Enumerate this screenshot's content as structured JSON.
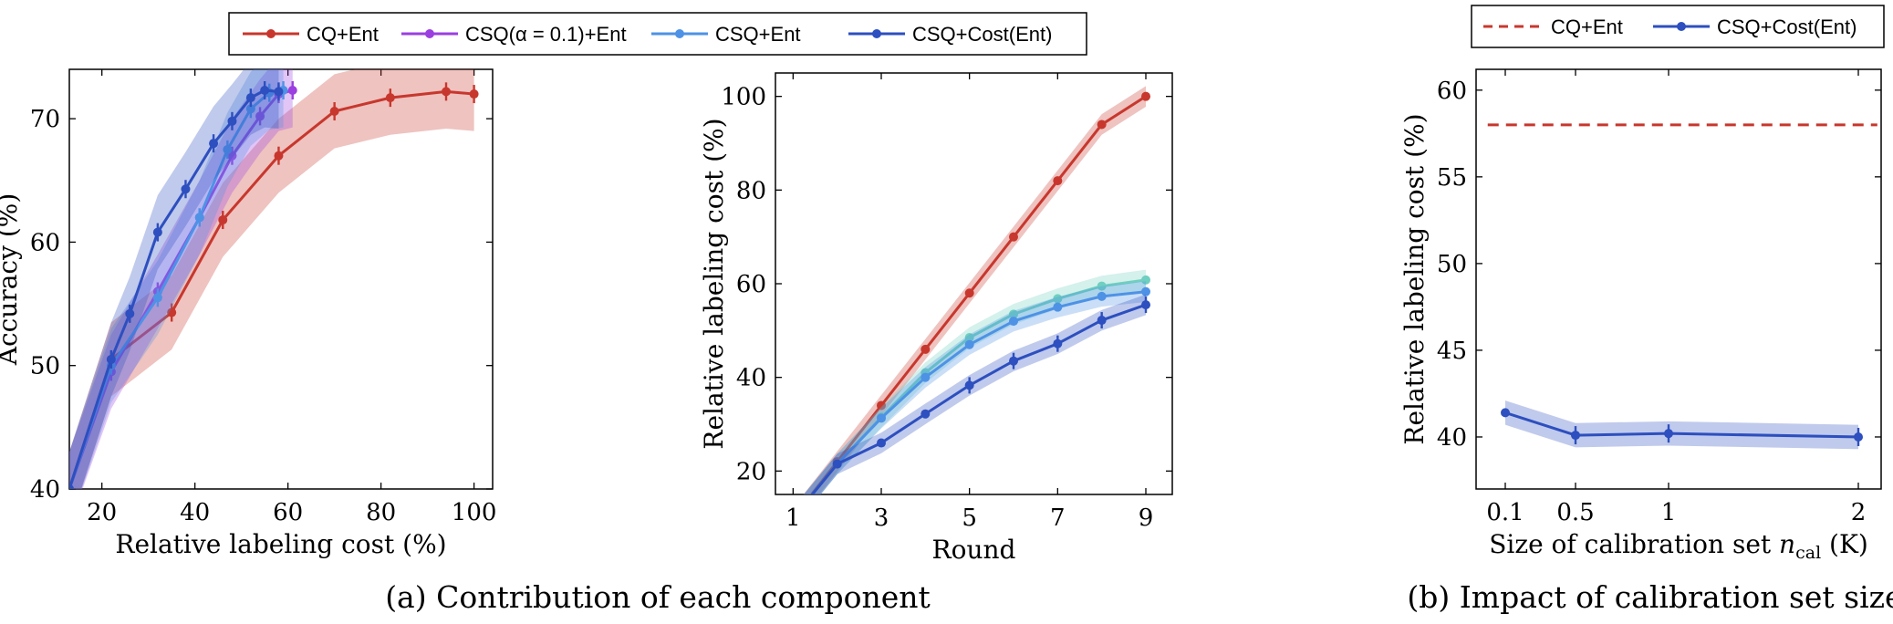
{
  "legend_a": [
    {
      "label": "CQ+Ent",
      "color": "#c8372d"
    },
    {
      "label": "CSQ(α = 0.1)+Ent",
      "color": "#9b3fe0"
    },
    {
      "label": "CSQ+Ent",
      "color": "#4e92e6"
    },
    {
      "label": "CSQ+Cost(Ent)",
      "color": "#2d4fbf"
    }
  ],
  "legend_b": [
    {
      "label": "CQ+Ent",
      "color": "#c8372d"
    },
    {
      "label": "CSQ+Cost(Ent)",
      "color": "#2d4fbf"
    }
  ],
  "captions": {
    "a": "(a) Contribution of each component",
    "b": "(b) Impact of calibration set size"
  },
  "chart_data": [
    {
      "type": "line",
      "xlabel": "Relative labeling cost (%)",
      "ylabel": "Accuracy (%)",
      "xlim": [
        13,
        104
      ],
      "ylim": [
        40,
        74
      ],
      "xticks": [
        20,
        40,
        60,
        80,
        100
      ],
      "yticks": [
        40,
        50,
        60,
        70
      ],
      "series": [
        {
          "name": "CQ+Ent",
          "color": "#c8372d",
          "x": [
            13,
            22,
            35,
            46,
            58,
            70,
            82,
            94,
            100
          ],
          "y": [
            40,
            50.5,
            54.3,
            61.8,
            67,
            70.6,
            71.7,
            72.2,
            72
          ]
        },
        {
          "name": "CSQ(α = 0.1)+Ent",
          "color": "#9b3fe0",
          "x": [
            13,
            22,
            32,
            41,
            48,
            54,
            58,
            61
          ],
          "y": [
            40,
            49.5,
            56,
            62,
            67,
            70.2,
            72,
            72.3
          ]
        },
        {
          "name": "CSQ+Ent",
          "color": "#4e92e6",
          "x": [
            13,
            22,
            32,
            41,
            47,
            52,
            56,
            59
          ],
          "y": [
            40,
            50,
            55.5,
            62,
            67.5,
            70.8,
            72.1,
            72.3
          ]
        },
        {
          "name": "CSQ+Cost(Ent)",
          "color": "#2d4fbf",
          "x": [
            13,
            22,
            26,
            32,
            38,
            44,
            48,
            52,
            55,
            58
          ],
          "y": [
            40,
            50.5,
            54.2,
            60.8,
            64.3,
            68,
            69.8,
            71.7,
            72.3,
            72.2
          ]
        }
      ]
    },
    {
      "type": "line",
      "xlabel": "Round",
      "ylabel": "Relative labeling cost (%)",
      "xlim": [
        0.6,
        9.6
      ],
      "ylim": [
        15,
        105
      ],
      "xticks": [
        1,
        3,
        5,
        7,
        9
      ],
      "yticks": [
        20,
        40,
        60,
        80,
        100
      ],
      "series": [
        {
          "color": "#c8372d",
          "x": [
            1,
            2,
            3,
            4,
            5,
            6,
            7,
            8,
            9
          ],
          "y": [
            10,
            22,
            34,
            46,
            58,
            70,
            82,
            94,
            100
          ]
        },
        {
          "color": "#6fcfc0",
          "x": [
            1,
            2,
            3,
            4,
            5,
            6,
            7,
            8,
            9
          ],
          "y": [
            10,
            21.5,
            31.5,
            41,
            48.5,
            53.5,
            56.8,
            59.5,
            60.8
          ]
        },
        {
          "color": "#4e92e6",
          "x": [
            1,
            2,
            3,
            4,
            5,
            6,
            7,
            8,
            9
          ],
          "y": [
            10,
            21.5,
            31.3,
            40,
            47,
            52,
            55,
            57.3,
            58.3
          ]
        },
        {
          "color": "#2d4fbf",
          "x": [
            1,
            2,
            3,
            4,
            5,
            6,
            7,
            8,
            9
          ],
          "y": [
            10,
            21.5,
            26,
            32.2,
            38.3,
            43.5,
            47.2,
            52.2,
            55.5
          ]
        }
      ]
    },
    {
      "type": "line",
      "xlabel": "Size of calibration set n_cal (K)",
      "ylabel": "Relative labeling cost (%)",
      "xlim": [
        0,
        2.1
      ],
      "ylim": [
        37,
        61.2
      ],
      "xticks": [
        "0.1",
        "0.5",
        "1",
        "2"
      ],
      "yticks": [
        40,
        45,
        50,
        55,
        60
      ],
      "series": [
        {
          "name": "CQ+Ent",
          "color": "#c8372d",
          "style": "dashed",
          "x": [
            0,
            2.1
          ],
          "y": [
            58,
            58
          ]
        },
        {
          "name": "CSQ+Cost(Ent)",
          "color": "#2d4fbf",
          "x": [
            0.1,
            0.5,
            1,
            2
          ],
          "y": [
            41.4,
            40.1,
            40.2,
            40
          ]
        }
      ]
    }
  ]
}
